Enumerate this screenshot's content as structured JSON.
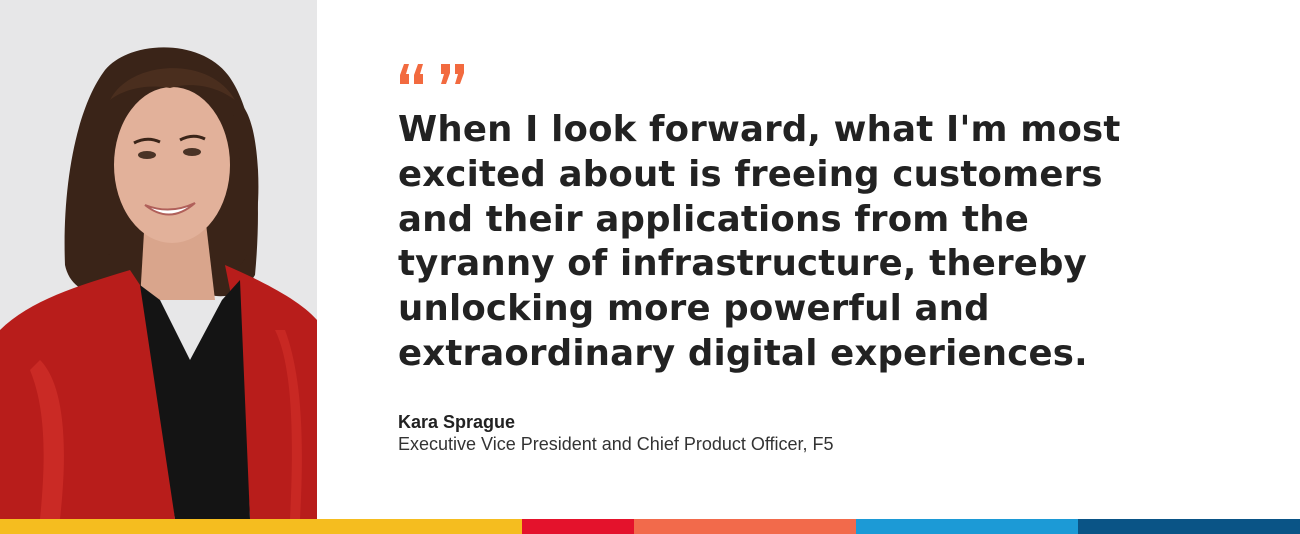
{
  "portrait": {
    "icon": "portrait-photo",
    "background_color": "#e7e7e8",
    "jacket_color": "#b81d1b",
    "hair_color": "#3a2418",
    "skin_color": "#e2b19a"
  },
  "quote": {
    "mark_icon": "quotation-marks-icon",
    "mark_color": "#f26a3f",
    "lines": [
      "When I look forward, what I'm most",
      "excited about is freeing customers",
      "and their applications from the",
      "tyranny of infrastructure, thereby",
      "unlocking more powerful and",
      "extraordinary digital experiences."
    ]
  },
  "speaker": {
    "name": "Kara Sprague",
    "title": "Executive Vice President and Chief Product Officer, F5"
  },
  "brand_bar": {
    "colors": [
      "#f5bd1f",
      "#e4122c",
      "#f26a4b",
      "#1c9ad6",
      "#0a5486"
    ]
  }
}
